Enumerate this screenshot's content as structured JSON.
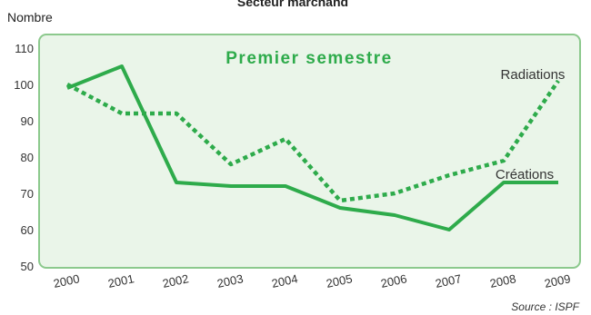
{
  "chart_data": {
    "type": "line",
    "title": "Secteur marchand",
    "subtitle": "Premier semestre",
    "ylabel": "Nombre",
    "xlabel": "",
    "categories": [
      "2000",
      "2001",
      "2002",
      "2003",
      "2004",
      "2005",
      "2006",
      "2007",
      "2008",
      "2009"
    ],
    "ylim": [
      50,
      110
    ],
    "yticks": [
      "50",
      "60",
      "70",
      "80",
      "90",
      "100",
      "110"
    ],
    "grid": false,
    "series": [
      {
        "name": "Radiations",
        "style": "dotted",
        "color": "#2eab4b",
        "values": [
          100,
          92,
          92,
          78,
          85,
          68,
          70,
          75,
          79,
          101
        ]
      },
      {
        "name": "Créations",
        "style": "solid",
        "color": "#2eab4b",
        "values": [
          99,
          105,
          73,
          72,
          72,
          66,
          64,
          60,
          73,
          73
        ]
      }
    ],
    "source": "Source : ISPF",
    "plot_background": "#eaf5e9",
    "border_color": "#8cc98d"
  }
}
